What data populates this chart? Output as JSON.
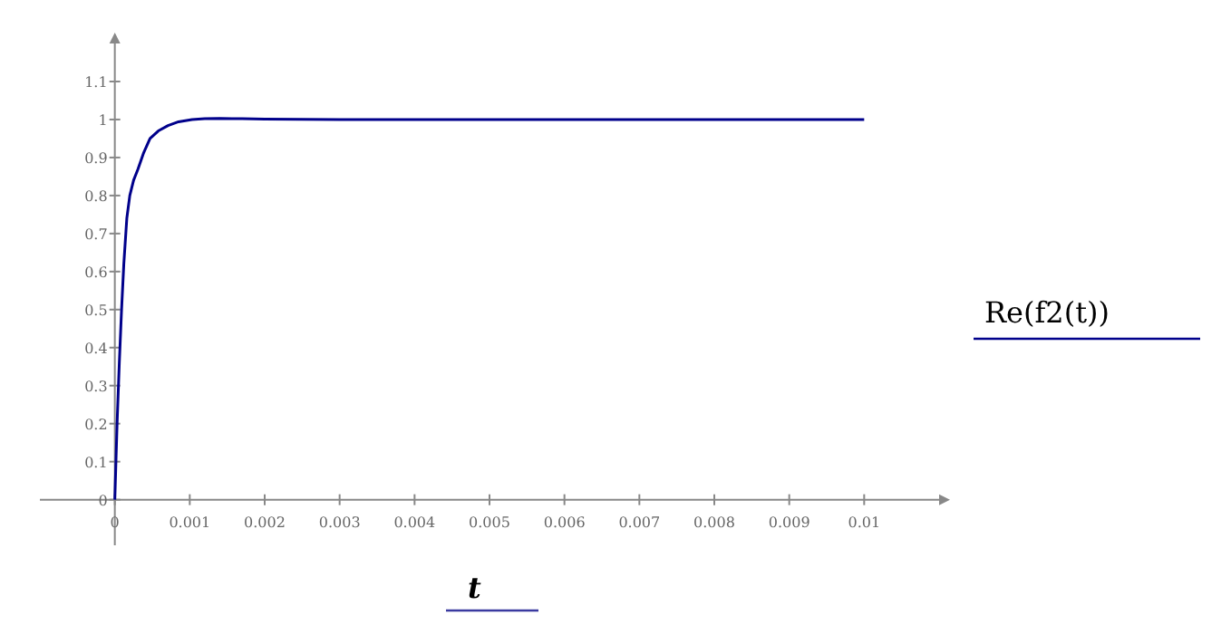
{
  "chart_data": {
    "type": "line",
    "xlabel": "t",
    "ylabel": "Re(f2(t))",
    "x": [
      0,
      3e-05,
      6e-05,
      9e-05,
      0.00012,
      0.00016,
      0.0002,
      0.00025,
      0.00031,
      0.00038,
      0.00047,
      0.00058,
      0.00071,
      0.00085,
      0.00103,
      0.0012,
      0.0014,
      0.0017,
      0.002,
      0.003,
      0.004,
      0.005,
      0.006,
      0.007,
      0.008,
      0.009,
      0.01
    ],
    "series": [
      {
        "color": "#00008b",
        "values": [
          0,
          0.2,
          0.36,
          0.5,
          0.62,
          0.74,
          0.8,
          0.84,
          0.87,
          0.91,
          0.95,
          0.97,
          0.984,
          0.994,
          1,
          1.002,
          1.003,
          1.002,
          1.001,
          1,
          1,
          1,
          1,
          1,
          1,
          1,
          1
        ]
      }
    ],
    "xlim": [
      -0.001,
      0.011
    ],
    "ylim": [
      -0.12,
      1.2
    ],
    "xticks": [
      0,
      0.001,
      0.002,
      0.003,
      0.004,
      0.005,
      0.006,
      0.007,
      0.008,
      0.009,
      0.01
    ],
    "yticks": [
      0,
      0.1,
      0.2,
      0.3,
      0.4,
      0.5,
      0.6,
      0.7,
      0.8,
      0.9,
      1,
      1.1
    ],
    "grid": false,
    "marker": "none",
    "line_style": "solid"
  }
}
